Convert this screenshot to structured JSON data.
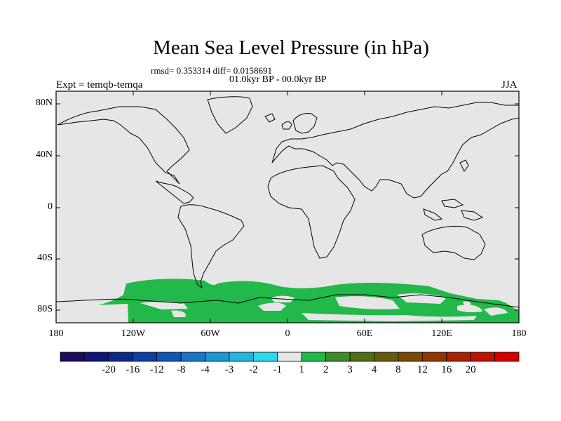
{
  "title": "Mean Sea Level Pressure (in hPa)",
  "stats": "rmsd= 0.353314 diff= 0.0158691",
  "period": "01.0kyr BP - 00.0kyr BP",
  "experiment": "Expt = temqb-temqa",
  "season": "JJA",
  "lat_labels": [
    "80N",
    "40N",
    "0",
    "40S",
    "80S"
  ],
  "lon_labels": [
    "180",
    "120W",
    "60W",
    "0",
    "60E",
    "120E",
    "180"
  ],
  "colorbar": {
    "colors": [
      "#1c0a5c",
      "#101674",
      "#0c2a8a",
      "#0d3ea0",
      "#1056b4",
      "#1976c2",
      "#1e94d0",
      "#24b4dc",
      "#2cd8e8",
      "#e6e6e6",
      "#22b84a",
      "#3e8a28",
      "#4f7018",
      "#625c10",
      "#7a4a08",
      "#8f3604",
      "#a62202",
      "#bc1402",
      "#d40000"
    ],
    "labels": [
      "-20",
      "-16",
      "-12",
      "-8",
      "-4",
      "-3",
      "-2",
      "-1",
      "1",
      "2",
      "3",
      "4",
      "8",
      "12",
      "16",
      "20"
    ]
  },
  "map": {
    "background_color": "#e6e6e6",
    "anomaly_color": "#22b84a"
  }
}
